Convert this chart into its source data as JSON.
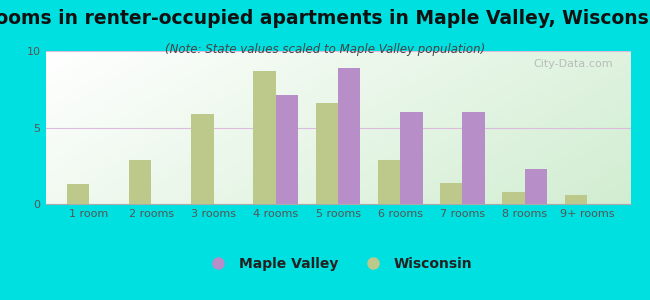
{
  "title": "Rooms in renter-occupied apartments in Maple Valley, Wisconsin",
  "subtitle": "(Note: State values scaled to Maple Valley population)",
  "categories": [
    "1 room",
    "2 rooms",
    "3 rooms",
    "4 rooms",
    "5 rooms",
    "6 rooms",
    "7 rooms",
    "8 rooms",
    "9+ rooms"
  ],
  "maple_valley": [
    0,
    0,
    0,
    7.1,
    8.9,
    6.0,
    6.0,
    2.3,
    0
  ],
  "wisconsin": [
    1.3,
    2.9,
    5.9,
    8.7,
    6.6,
    2.9,
    1.4,
    0.8,
    0.6
  ],
  "maple_valley_color": "#b88ec8",
  "wisconsin_color": "#bcc98a",
  "background_outer": "#00e0e0",
  "ylim": [
    0,
    10
  ],
  "yticks": [
    0,
    5,
    10
  ],
  "bar_width": 0.36,
  "title_fontsize": 13.5,
  "subtitle_fontsize": 8.5,
  "tick_fontsize": 8,
  "legend_fontsize": 10,
  "watermark_text": "City-Data.com",
  "grid_color": "#ddbbdd",
  "tick_color": "#555555"
}
